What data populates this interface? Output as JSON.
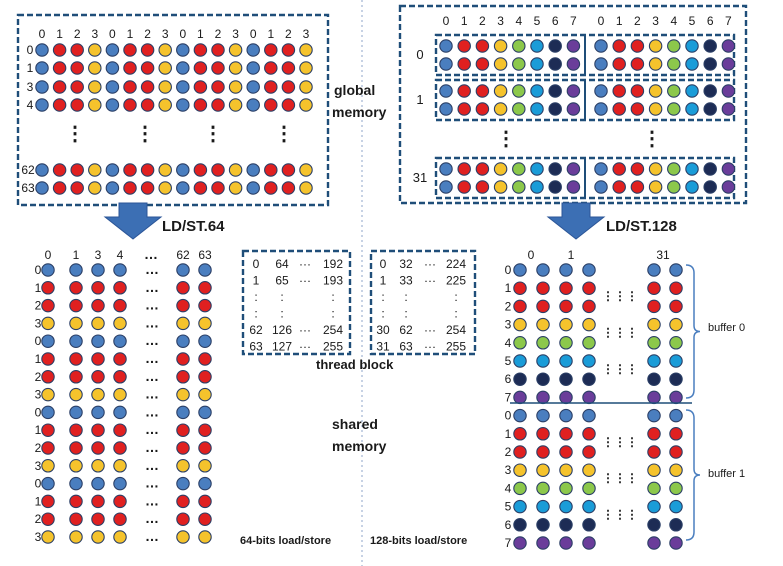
{
  "labels": {
    "global_memory": [
      "global",
      "memory"
    ],
    "shared_memory": [
      "shared",
      "memory"
    ],
    "ld64": "LD/ST.64",
    "ld128": "LD/ST.128",
    "thread_block": "thread block",
    "bits64": "64-bits load/store",
    "bits128": "128-bits load/store",
    "buffer0": "buffer 0",
    "buffer1": "buffer 1",
    "ellipsis_h": "…",
    "ellipsis_v": "⋮"
  },
  "colors": {
    "dash": "#1f4e79",
    "arrow": "#3c6fb4",
    "blue": "#4a7ebf",
    "red": "#e02020",
    "yellow": "#f5c32c",
    "green": "#8cc84b",
    "teal": "#1a9cd8",
    "navy": "#1d2c55",
    "purple": "#6a3d9a"
  },
  "global64": {
    "col_labels": [
      "0",
      "1",
      "2",
      "3",
      "0",
      "1",
      "2",
      "3",
      "0",
      "1",
      "2",
      "3",
      "0",
      "1",
      "2",
      "3"
    ],
    "row_labels_top": [
      "0",
      "1",
      "3",
      "4"
    ],
    "row_labels_bottom": [
      "62",
      "63"
    ],
    "pattern": [
      "blue",
      "red",
      "red",
      "yellow"
    ]
  },
  "global128": {
    "col_labels": [
      "0",
      "1",
      "2",
      "3",
      "4",
      "5",
      "6",
      "7",
      "0",
      "1",
      "2",
      "3",
      "4",
      "5",
      "6",
      "7"
    ],
    "group_labels": [
      "0",
      "1",
      "31"
    ],
    "pattern": [
      "blue",
      "red",
      "red",
      "yellow",
      "green",
      "teal",
      "navy",
      "purple"
    ]
  },
  "shared64": {
    "col_labels": [
      "0",
      "1",
      "3",
      "4",
      "62",
      "63"
    ],
    "row_labels": [
      "0",
      "1",
      "2",
      "3",
      "0",
      "1",
      "2",
      "3",
      "0",
      "1",
      "2",
      "3",
      "0",
      "1",
      "2",
      "3"
    ],
    "row_colors": [
      "blue",
      "red",
      "red",
      "yellow"
    ]
  },
  "shared128": {
    "col_labels": [
      "0",
      "1",
      "31"
    ],
    "row_labels": [
      "0",
      "1",
      "2",
      "3",
      "4",
      "5",
      "6",
      "7",
      "0",
      "1",
      "2",
      "3",
      "4",
      "5",
      "6",
      "7"
    ],
    "row_colors": [
      "blue",
      "red",
      "red",
      "yellow",
      "green",
      "teal",
      "navy",
      "purple"
    ]
  },
  "thread_block_a": {
    "rows": [
      [
        "0",
        "64",
        "···",
        "192"
      ],
      [
        "1",
        "65",
        "···",
        "193"
      ],
      [
        ":",
        ":",
        "",
        ":"
      ],
      [
        ":",
        ":",
        "",
        ":"
      ],
      [
        "62",
        "126",
        "···",
        "254"
      ],
      [
        "63",
        "127",
        "···",
        "255"
      ]
    ]
  },
  "thread_block_b": {
    "rows": [
      [
        "0",
        "32",
        "···",
        "224"
      ],
      [
        "1",
        "33",
        "···",
        "225"
      ],
      [
        ":",
        ":",
        "",
        ":"
      ],
      [
        ":",
        ":",
        "",
        ":"
      ],
      [
        "30",
        "62",
        "···",
        "254"
      ],
      [
        "31",
        "63",
        "···",
        "255"
      ]
    ]
  }
}
